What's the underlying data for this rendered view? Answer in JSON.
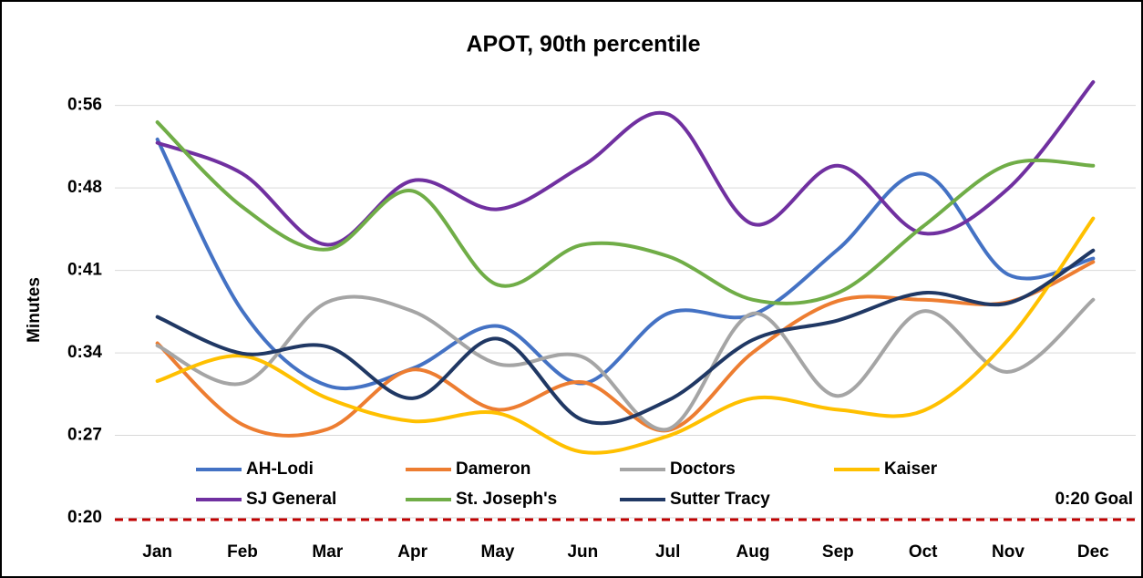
{
  "chart_data": {
    "type": "line",
    "title": "APOT, 90th percentile",
    "y_label": "Minutes",
    "categories": [
      "Jan",
      "Feb",
      "Mar",
      "Apr",
      "May",
      "Jun",
      "Jul",
      "Aug",
      "Sep",
      "Oct",
      "Nov",
      "Dec"
    ],
    "series": [
      {
        "name": "AH-Lodi",
        "color": "#4472c4",
        "values": [
          53.2,
          38.2,
          31.7,
          33.2,
          36.9,
          31.9,
          38.0,
          37.9,
          43.6,
          50.2,
          41.4,
          42.8
        ]
      },
      {
        "name": "Dameron",
        "color": "#ed7d31",
        "values": [
          35.4,
          28.3,
          27.9,
          33.1,
          29.6,
          32.0,
          27.8,
          34.6,
          39.1,
          39.2,
          39.0,
          42.5
        ]
      },
      {
        "name": "Doctors",
        "color": "#a5a5a5",
        "values": [
          35.2,
          31.9,
          39.0,
          38.2,
          33.6,
          34.2,
          27.9,
          38.0,
          30.8,
          38.2,
          32.9,
          39.2
        ]
      },
      {
        "name": "Kaiser",
        "color": "#ffc000",
        "values": [
          32.1,
          34.3,
          30.6,
          28.6,
          29.3,
          25.9,
          27.3,
          30.6,
          29.6,
          29.5,
          35.7,
          46.3
        ]
      },
      {
        "name": "SJ General",
        "color": "#7030a0",
        "values": [
          52.9,
          50.2,
          44.0,
          49.6,
          47.1,
          50.9,
          55.4,
          45.8,
          50.9,
          45.0,
          48.9,
          58.2
        ]
      },
      {
        "name": "St. Joseph's",
        "color": "#70ad47",
        "values": [
          54.7,
          47.3,
          43.6,
          48.7,
          40.5,
          44.0,
          43.0,
          39.2,
          39.8,
          45.6,
          51.0,
          50.9
        ]
      },
      {
        "name": "Sutter Tracy",
        "color": "#203864",
        "values": [
          37.7,
          34.5,
          35.1,
          30.6,
          35.8,
          28.7,
          30.4,
          35.7,
          37.4,
          39.8,
          38.9,
          43.5
        ]
      }
    ],
    "ylim": [
      20.16,
      59
    ],
    "yticks": [
      {
        "value": 20.16,
        "label": "0:20"
      },
      {
        "value": 27.36,
        "label": "0:27"
      },
      {
        "value": 34.56,
        "label": "0:34"
      },
      {
        "value": 41.76,
        "label": "0:41"
      },
      {
        "value": 48.96,
        "label": "0:48"
      },
      {
        "value": 56.16,
        "label": "0:56"
      }
    ],
    "grid": true,
    "goal": {
      "value": 20,
      "label": "0:20 Goal",
      "color": "#c00000"
    }
  }
}
